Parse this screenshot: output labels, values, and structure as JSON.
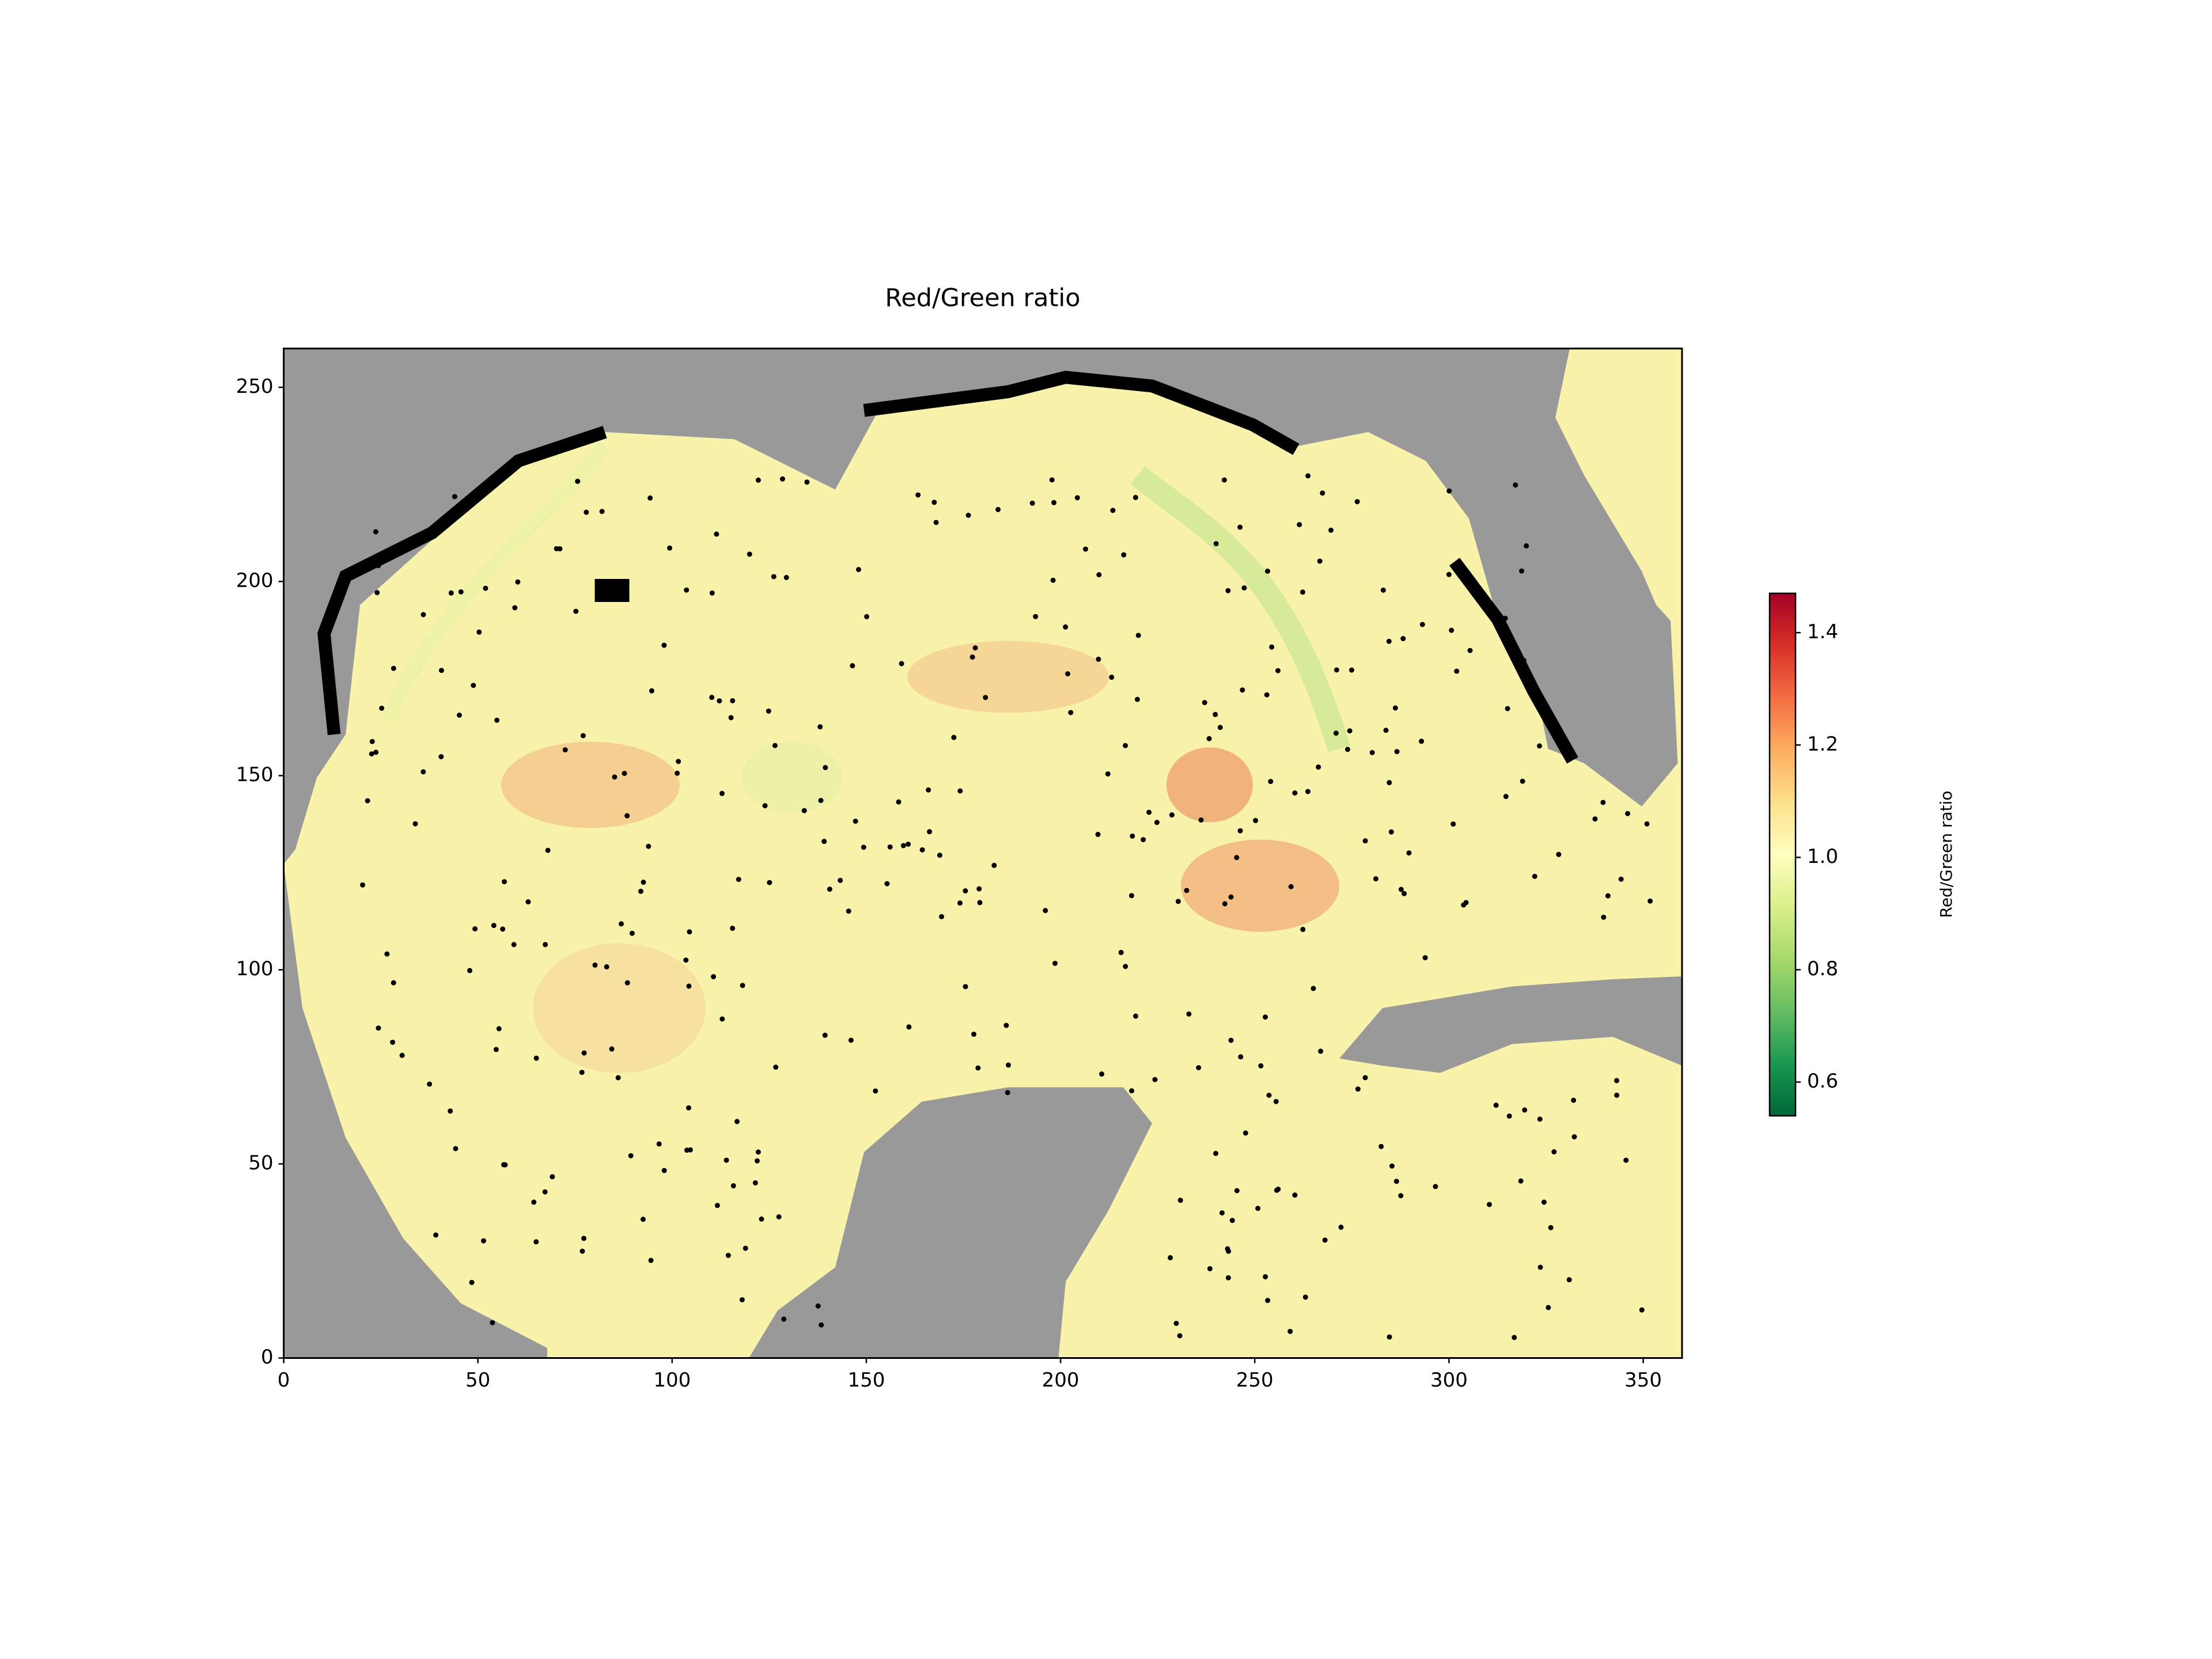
{
  "chart_data": {
    "type": "heatmap",
    "title": "Red/Green ratio",
    "xlim": [
      0,
      360
    ],
    "ylim": [
      0,
      260
    ],
    "xticks": [
      0,
      50,
      100,
      150,
      200,
      250,
      300,
      350
    ],
    "yticks": [
      0,
      50,
      100,
      150,
      200,
      250
    ],
    "colorbar": {
      "label": "Red/Green ratio",
      "lim": [
        0.54,
        1.47
      ],
      "ticks": [
        0.6,
        0.8,
        {
          "value": 1,
          "label": "1.0"
        },
        1.2,
        1.4
      ],
      "colormap": "RdYlGn_r",
      "colors": [
        "#006837",
        "#1a9850",
        "#66bd63",
        "#a6d96a",
        "#d9ef8b",
        "#ffffbf",
        "#fee08b",
        "#fdae61",
        "#f46d43",
        "#d73027",
        "#a50026"
      ]
    }
  }
}
